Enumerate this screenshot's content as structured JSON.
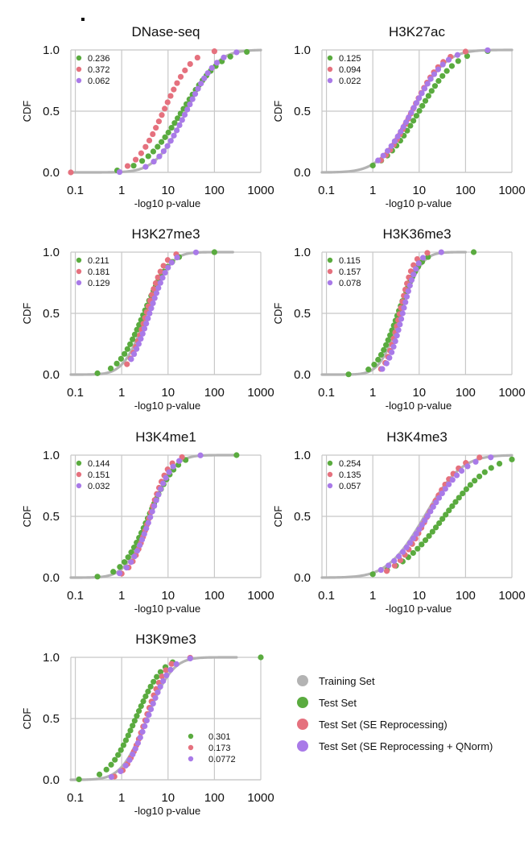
{
  "chart_data": {
    "type": "scatter",
    "xscale": "log",
    "xlim": [
      0.08,
      1000
    ],
    "ylim": [
      0,
      1
    ],
    "x_ticks": [
      "0.1",
      "1",
      "10",
      "100",
      "1000"
    ],
    "y_ticks": [
      "0.0",
      "0.5",
      "1.0"
    ],
    "xlabel": "-log10 p-value",
    "ylabel": "CDF",
    "grid": true,
    "colors": {
      "training": "#b3b3b3",
      "test": "#5aab3f",
      "se": "#e5717e",
      "qn": "#a97ae8"
    },
    "legend": {
      "position": "bottom-right",
      "entries": [
        {
          "key": "training",
          "label": "Training Set"
        },
        {
          "key": "test",
          "label": "Test Set"
        },
        {
          "key": "se",
          "label": "Test Set (SE Reprocessing)"
        },
        {
          "key": "qn",
          "label": "Test Set (SE Reprocessing + QNorm)"
        }
      ]
    },
    "panels": [
      {
        "title": "DNase-seq",
        "stats": [
          "0.236",
          "0.372",
          "0.062"
        ],
        "stats_position": "top-left",
        "curves": {
          "training": {
            "median": 25,
            "sigma": 1.2,
            "xmin": 0.08,
            "xmax": 1000
          },
          "test": {
            "median": 20,
            "sigma": 1.5,
            "xmin": 0.8,
            "xmax": 500,
            "n": 26
          },
          "se": {
            "median": 8,
            "sigma": 1.1,
            "xmin": 0.08,
            "xmax": 100,
            "n": 20
          },
          "qn": {
            "median": 25,
            "sigma": 1.2,
            "xmin": 0.9,
            "xmax": 300,
            "n": 24
          }
        }
      },
      {
        "title": "H3K27ac",
        "stats": [
          "0.125",
          "0.094",
          "0.022"
        ],
        "stats_position": "top-left",
        "curves": {
          "training": {
            "median": 7,
            "sigma": 1.3,
            "xmin": 0.08,
            "xmax": 1000
          },
          "test": {
            "median": 10,
            "sigma": 1.45,
            "xmin": 1.0,
            "xmax": 300,
            "n": 24
          },
          "se": {
            "median": 7,
            "sigma": 1.2,
            "xmin": 1.5,
            "xmax": 100,
            "n": 22
          },
          "qn": {
            "median": 7,
            "sigma": 1.3,
            "xmin": 1.3,
            "xmax": 300,
            "n": 24
          }
        }
      },
      {
        "title": "H3K27me3",
        "stats": [
          "0.211",
          "0.181",
          "0.129"
        ],
        "stats_position": "top-left",
        "curves": {
          "training": {
            "median": 3.5,
            "sigma": 0.9,
            "xmin": 0.08,
            "xmax": 250
          },
          "test": {
            "median": 3.0,
            "sigma": 1.0,
            "xmin": 0.3,
            "xmax": 100,
            "n": 26
          },
          "se": {
            "median": 3.4,
            "sigma": 0.7,
            "xmin": 1.3,
            "xmax": 15,
            "n": 20
          },
          "qn": {
            "median": 4.0,
            "sigma": 0.8,
            "xmin": 1.6,
            "xmax": 40,
            "n": 22
          }
        }
      },
      {
        "title": "H3K36me3",
        "stats": [
          "0.115",
          "0.157",
          "0.078"
        ],
        "stats_position": "top-left",
        "curves": {
          "training": {
            "median": 4.0,
            "sigma": 0.8,
            "xmin": 0.08,
            "xmax": 100
          },
          "test": {
            "median": 3.5,
            "sigma": 0.85,
            "xmin": 0.3,
            "xmax": 150,
            "n": 26
          },
          "se": {
            "median": 3.8,
            "sigma": 0.55,
            "xmin": 1.5,
            "xmax": 15,
            "n": 20
          },
          "qn": {
            "median": 4.4,
            "sigma": 0.6,
            "xmin": 1.6,
            "xmax": 30,
            "n": 22
          }
        }
      },
      {
        "title": "H3K4me1",
        "stats": [
          "0.144",
          "0.151",
          "0.032"
        ],
        "stats_position": "top-left",
        "curves": {
          "training": {
            "median": 4.0,
            "sigma": 0.95,
            "xmin": 0.08,
            "xmax": 300
          },
          "test": {
            "median": 3.8,
            "sigma": 1.05,
            "xmin": 0.3,
            "xmax": 300,
            "n": 26
          },
          "se": {
            "median": 4.0,
            "sigma": 0.75,
            "xmin": 1.0,
            "xmax": 20,
            "n": 20
          },
          "qn": {
            "median": 4.2,
            "sigma": 0.85,
            "xmin": 0.9,
            "xmax": 50,
            "n": 22
          }
        }
      },
      {
        "title": "H3K4me3",
        "stats": [
          "0.254",
          "0.135",
          "0.057"
        ],
        "stats_position": "top-left",
        "curves": {
          "training": {
            "median": 13,
            "sigma": 1.45,
            "xmin": 0.08,
            "xmax": 1000
          },
          "test": {
            "median": 35,
            "sigma": 1.85,
            "xmin": 1.0,
            "xmax": 1000,
            "n": 28
          },
          "se": {
            "median": 15,
            "sigma": 1.25,
            "xmin": 2.0,
            "xmax": 200,
            "n": 22
          },
          "qn": {
            "median": 15,
            "sigma": 1.5,
            "xmin": 1.5,
            "xmax": 350,
            "n": 26
          }
        }
      },
      {
        "title": "H3K9me3",
        "stats": [
          "0.301",
          "0.173",
          "0.0772"
        ],
        "stats_position": "bottom-right",
        "curves": {
          "training": {
            "median": 3.5,
            "sigma": 1.0,
            "xmin": 0.08,
            "xmax": 300
          },
          "test": {
            "median": 2.0,
            "sigma": 1.05,
            "xmin": 0.12,
            "xmax": 1000,
            "n": 26
          },
          "se": {
            "median": 3.3,
            "sigma": 0.8,
            "xmin": 0.7,
            "xmax": 30,
            "n": 20
          },
          "qn": {
            "median": 3.6,
            "sigma": 0.9,
            "xmin": 0.6,
            "xmax": 30,
            "n": 22
          }
        }
      }
    ]
  }
}
